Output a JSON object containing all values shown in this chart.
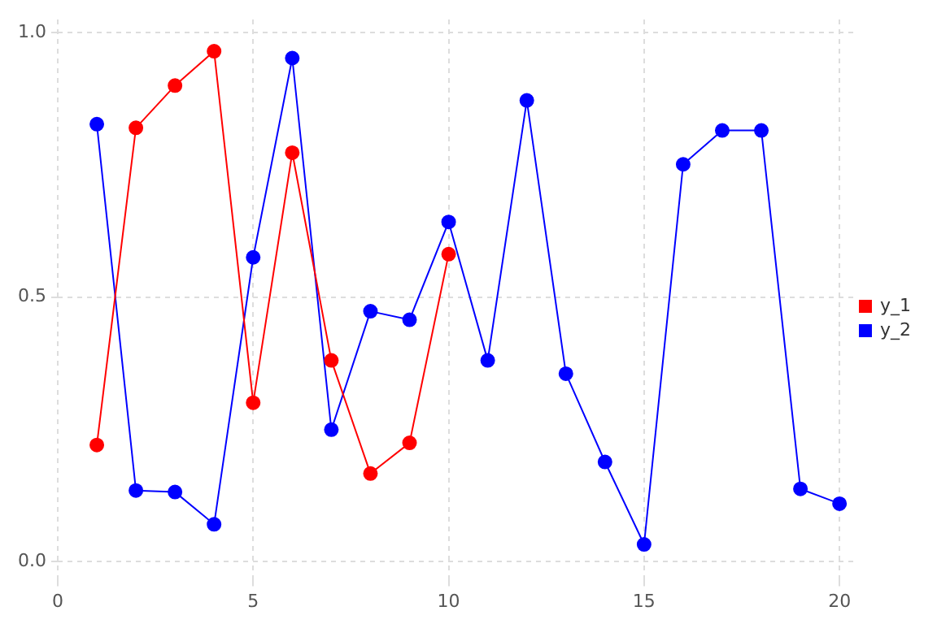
{
  "chart_data": {
    "type": "line",
    "x": [
      1,
      2,
      3,
      4,
      5,
      6,
      7,
      8,
      9,
      10,
      11,
      12,
      13,
      14,
      15,
      16,
      17,
      18,
      19,
      20
    ],
    "series": [
      {
        "name": "y_1",
        "color": "#ff0000",
        "x": [
          1,
          2,
          3,
          4,
          5,
          6,
          7,
          8,
          9,
          10
        ],
        "values": [
          0.22,
          0.82,
          0.9,
          0.965,
          0.3,
          0.773,
          0.38,
          0.166,
          0.224,
          0.581
        ]
      },
      {
        "name": "y_2",
        "color": "#0000ff",
        "values": [
          0.827,
          0.134,
          0.131,
          0.07,
          0.575,
          0.952,
          0.249,
          0.473,
          0.457,
          0.642,
          0.38,
          0.872,
          0.355,
          0.188,
          0.032,
          0.751,
          0.815,
          0.815,
          0.137,
          0.109
        ]
      }
    ],
    "xlim": [
      0,
      20.35
    ],
    "xticks": [
      0,
      5,
      10,
      15,
      20
    ],
    "ylim": [
      -0.035,
      1.025
    ],
    "yticks": [
      {
        "value": 0,
        "label": "0.0"
      },
      {
        "value": 0.5,
        "label": "0.5"
      },
      {
        "value": 1,
        "label": "1.0"
      }
    ],
    "grid": true,
    "legend": "right",
    "marker": "circle",
    "line_style": "solid"
  }
}
